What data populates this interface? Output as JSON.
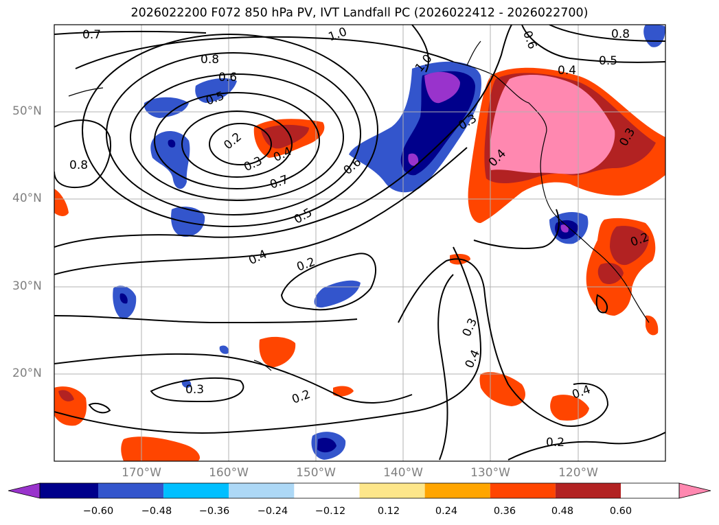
{
  "title": "2026022200 F072 850 hPa PV, IVT Landfall PC (2026022412 - 2026022700)",
  "lat_labels": [
    "50°N",
    "40°N",
    "30°N",
    "20°N"
  ],
  "lon_labels": [
    "170°W",
    "160°W",
    "150°W",
    "140°W",
    "130°W",
    "120°W"
  ],
  "contour_labels": [
    "0.7",
    "1.0",
    "0.6",
    "0.8",
    "0.8",
    "0.6",
    "0.5",
    "0.4",
    "0.5",
    "1.0",
    "0.2",
    "0.3",
    "0.4",
    "0.8",
    "0.7",
    "0.6",
    "0.3",
    "0.4",
    "0.5",
    "0.3",
    "0.4",
    "0.2",
    "0.2",
    "0.3",
    "0.2",
    "0.3",
    "0.4",
    "0.4",
    "0.2"
  ],
  "colorbar": {
    "labels": [
      "−0.60",
      "−0.48",
      "−0.36",
      "−0.24",
      "−0.12",
      "0.12",
      "0.24",
      "0.36",
      "0.48",
      "0.60"
    ],
    "colors": [
      "#9933cc",
      "#00008b",
      "#3355cc",
      "#00bfff",
      "#add8f6",
      "#ffffff",
      "#fde68a",
      "#ffa500",
      "#ff4500",
      "#b22222",
      "#ff88b0"
    ]
  }
}
